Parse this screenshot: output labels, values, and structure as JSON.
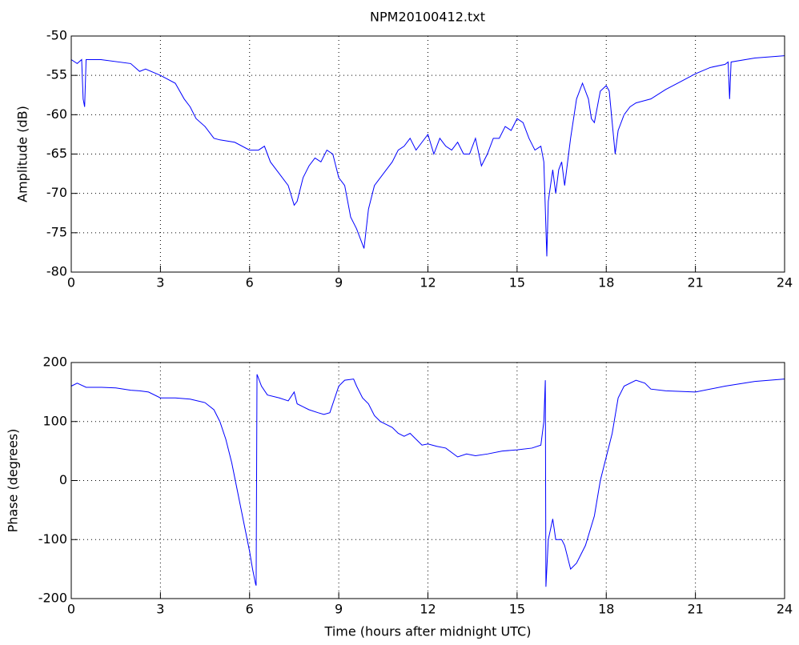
{
  "chart_data": [
    {
      "type": "line",
      "title": "NPM20100412.txt",
      "ylabel": "Amplitude (dB)",
      "x": [
        0,
        0.2,
        0.35,
        0.4,
        0.45,
        0.5,
        1,
        2,
        2.3,
        2.5,
        3,
        3.5,
        3.8,
        4,
        4.2,
        4.5,
        4.8,
        5,
        5.5,
        6,
        6.3,
        6.5,
        6.7,
        7,
        7.3,
        7.5,
        7.6,
        7.8,
        8,
        8.2,
        8.4,
        8.6,
        8.8,
        9,
        9.2,
        9.4,
        9.6,
        9.8,
        9.85,
        10,
        10.2,
        10.5,
        10.8,
        11,
        11.2,
        11.4,
        11.6,
        11.8,
        12,
        12.2,
        12.4,
        12.6,
        12.8,
        13,
        13.2,
        13.4,
        13.6,
        13.8,
        14,
        14.2,
        14.4,
        14.6,
        14.8,
        15,
        15.2,
        15.4,
        15.6,
        15.8,
        15.9,
        16,
        16.05,
        16.2,
        16.3,
        16.4,
        16.5,
        16.6,
        16.8,
        17,
        17.2,
        17.4,
        17.5,
        17.6,
        17.8,
        18,
        18.1,
        18.2,
        18.3,
        18.4,
        18.6,
        18.8,
        19,
        19.5,
        20,
        20.5,
        21,
        21.5,
        22,
        22.1,
        22.15,
        22.2,
        23,
        24
      ],
      "series": [
        {
          "color": "#0000ff",
          "values": [
            -53,
            -53.5,
            -53,
            -58,
            -59,
            -53,
            -53,
            -53.5,
            -54.5,
            -54.2,
            -55,
            -56,
            -58,
            -59,
            -60.5,
            -61.5,
            -63,
            -63.2,
            -63.5,
            -64.5,
            -64.5,
            -64,
            -66,
            -67.5,
            -69,
            -71.5,
            -71,
            -68,
            -66.5,
            -65.5,
            -66,
            -64.5,
            -65,
            -68,
            -69,
            -73,
            -74.5,
            -76.5,
            -77,
            -72,
            -69,
            -67.5,
            -66,
            -64.5,
            -64,
            -63,
            -64.5,
            -63.5,
            -62.5,
            -65,
            -63,
            -64,
            -64.5,
            -63.5,
            -65,
            -65,
            -63,
            -66.5,
            -65,
            -63,
            -63,
            -61.5,
            -62,
            -60.5,
            -61,
            -63,
            -64.5,
            -64,
            -66,
            -78,
            -71,
            -67,
            -70,
            -67,
            -66,
            -69,
            -63,
            -58,
            -56,
            -58,
            -60.5,
            -61,
            -57,
            -56.3,
            -57,
            -61,
            -65,
            -62,
            -60,
            -59,
            -58.5,
            -58,
            -56.8,
            -55.8,
            -54.8,
            -54,
            -53.6,
            -53.3,
            -58,
            -53.3,
            -52.8,
            -52.5
          ]
        }
      ],
      "xlim": [
        0,
        24
      ],
      "xticks": [
        0,
        3,
        6,
        9,
        12,
        15,
        18,
        21,
        24
      ],
      "ylim": [
        -80,
        -50
      ],
      "yticks": [
        -80,
        -75,
        -70,
        -65,
        -60,
        -55,
        -50
      ],
      "grid": true
    },
    {
      "type": "line",
      "ylabel": "Phase (degrees)",
      "xlabel": "Time (hours after midnight UTC)",
      "x": [
        0,
        0.2,
        0.5,
        1,
        1.5,
        2,
        2.3,
        2.6,
        3,
        3.5,
        4,
        4.5,
        4.8,
        5,
        5.2,
        5.4,
        5.6,
        5.8,
        6,
        6.1,
        6.2,
        6.22,
        6.25,
        6.4,
        6.6,
        7,
        7.3,
        7.5,
        7.6,
        7.8,
        8,
        8.3,
        8.5,
        8.7,
        9,
        9.2,
        9.5,
        9.6,
        9.8,
        10,
        10.2,
        10.4,
        10.6,
        10.8,
        11,
        11.2,
        11.4,
        11.6,
        11.8,
        12,
        12.3,
        12.6,
        13,
        13.3,
        13.6,
        14,
        14.5,
        15,
        15.5,
        15.8,
        15.9,
        15.95,
        15.97,
        16.05,
        16.2,
        16.3,
        16.5,
        16.6,
        16.8,
        17,
        17.3,
        17.6,
        17.8,
        18,
        18.2,
        18.4,
        18.6,
        19,
        19.3,
        19.5,
        20,
        21,
        22,
        23,
        24
      ],
      "series": [
        {
          "color": "#0000ff",
          "values": [
            160,
            165,
            158,
            158,
            157,
            153,
            152,
            150,
            140,
            140,
            138,
            132,
            120,
            100,
            70,
            30,
            -20,
            -70,
            -120,
            -150,
            -175,
            -178,
            180,
            160,
            145,
            140,
            135,
            150,
            130,
            125,
            120,
            115,
            112,
            115,
            160,
            170,
            172,
            160,
            140,
            130,
            110,
            100,
            95,
            90,
            80,
            75,
            80,
            70,
            60,
            62,
            58,
            55,
            40,
            45,
            42,
            45,
            50,
            52,
            55,
            60,
            100,
            170,
            -180,
            -100,
            -65,
            -100,
            -100,
            -110,
            -150,
            -140,
            -110,
            -60,
            0,
            40,
            80,
            140,
            160,
            170,
            165,
            155,
            152,
            150,
            160,
            168,
            172
          ]
        }
      ],
      "xlim": [
        0,
        24
      ],
      "xticks": [
        0,
        3,
        6,
        9,
        12,
        15,
        18,
        21,
        24
      ],
      "ylim": [
        -200,
        200
      ],
      "yticks": [
        -200,
        -100,
        0,
        100,
        200
      ],
      "grid": true
    }
  ]
}
